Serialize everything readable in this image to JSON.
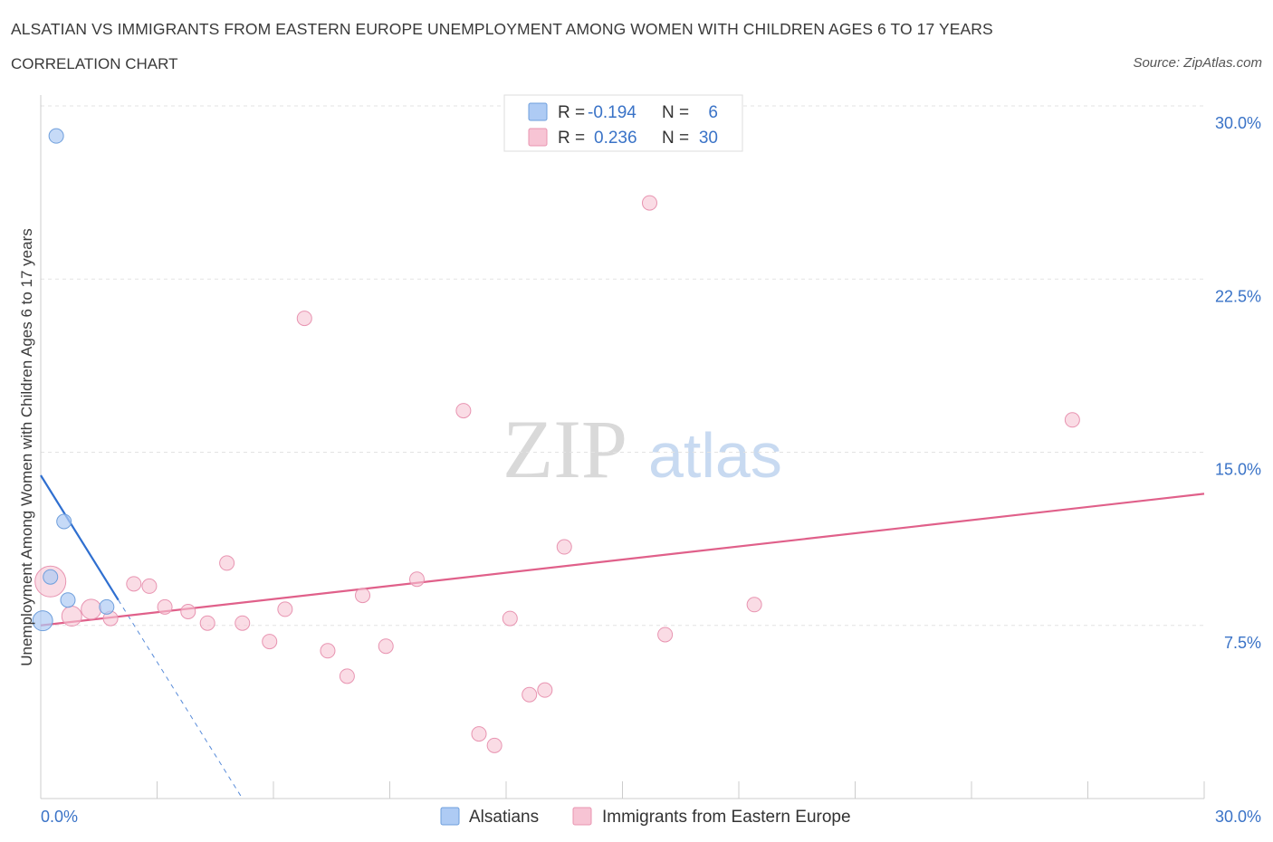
{
  "header": {
    "title": "ALSATIAN VS IMMIGRANTS FROM EASTERN EUROPE UNEMPLOYMENT AMONG WOMEN WITH CHILDREN AGES 6 TO 17 YEARS",
    "subtitle": "CORRELATION CHART",
    "source": "Source: ZipAtlas.com"
  },
  "watermark": {
    "zip": "ZIP",
    "atlas": "atlas"
  },
  "colors": {
    "alsatian_fill": "#aecbf4",
    "alsatian_stroke": "#6f9fdc",
    "alsatian_line": "#2f6fd0",
    "immigrant_fill": "#f7c4d4",
    "immigrant_stroke": "#e894b1",
    "immigrant_line": "#e0608a",
    "accent_text": "#3a73c7"
  },
  "legend_box": {
    "rows": [
      {
        "r_label": "R =",
        "r_value": "-0.194",
        "n_label": "N =",
        "n_value": "6"
      },
      {
        "r_label": "R =",
        "r_value": "0.236",
        "n_label": "N =",
        "n_value": "30"
      }
    ]
  },
  "bottom_legend": {
    "items": [
      "Alsatians",
      "Immigrants from Eastern Europe"
    ]
  },
  "chart_data": {
    "type": "scatter",
    "title": "ALSATIAN VS IMMIGRANTS FROM EASTERN EUROPE UNEMPLOYMENT AMONG WOMEN WITH CHILDREN AGES 6 TO 17 YEARS",
    "subtitle": "CORRELATION CHART",
    "xlabel": "",
    "ylabel": "Unemployment Among Women with Children Ages 6 to 17 years",
    "xlim": [
      0,
      30
    ],
    "ylim": [
      0,
      30
    ],
    "x_tick_labels": [
      "0.0%",
      "30.0%"
    ],
    "y_ticks": [
      7.5,
      15.0,
      22.5,
      30.0
    ],
    "y_tick_labels": [
      "7.5%",
      "15.0%",
      "22.5%",
      "30.0%"
    ],
    "grid": true,
    "series": [
      {
        "name": "Alsatians",
        "R": -0.194,
        "N": 6,
        "points": [
          {
            "x": 0.4,
            "y": 28.7
          },
          {
            "x": 0.6,
            "y": 12.0
          },
          {
            "x": 0.25,
            "y": 9.6
          },
          {
            "x": 0.7,
            "y": 8.6
          },
          {
            "x": 1.7,
            "y": 8.3
          },
          {
            "x": 0.05,
            "y": 7.7
          }
        ],
        "trend": {
          "x0": 0.0,
          "y0": 14.0,
          "x1": 2.0,
          "y1": 8.6,
          "dash_x1": 5.2,
          "dash_y1": 0.0
        }
      },
      {
        "name": "Immigrants from Eastern Europe",
        "R": 0.236,
        "N": 30,
        "points": [
          {
            "x": 0.25,
            "y": 9.4
          },
          {
            "x": 0.8,
            "y": 7.9
          },
          {
            "x": 1.3,
            "y": 8.2
          },
          {
            "x": 1.8,
            "y": 7.8
          },
          {
            "x": 2.4,
            "y": 9.3
          },
          {
            "x": 2.8,
            "y": 9.2
          },
          {
            "x": 3.2,
            "y": 8.3
          },
          {
            "x": 3.8,
            "y": 8.1
          },
          {
            "x": 4.3,
            "y": 7.6
          },
          {
            "x": 4.8,
            "y": 10.2
          },
          {
            "x": 5.2,
            "y": 7.6
          },
          {
            "x": 5.9,
            "y": 6.8
          },
          {
            "x": 6.3,
            "y": 8.2
          },
          {
            "x": 6.8,
            "y": 20.8
          },
          {
            "x": 7.4,
            "y": 6.4
          },
          {
            "x": 7.9,
            "y": 5.3
          },
          {
            "x": 8.3,
            "y": 8.8
          },
          {
            "x": 8.9,
            "y": 6.6
          },
          {
            "x": 9.7,
            "y": 9.5
          },
          {
            "x": 10.9,
            "y": 16.8
          },
          {
            "x": 11.3,
            "y": 2.8
          },
          {
            "x": 11.7,
            "y": 2.3
          },
          {
            "x": 12.1,
            "y": 7.8
          },
          {
            "x": 12.6,
            "y": 4.5
          },
          {
            "x": 13.0,
            "y": 4.7
          },
          {
            "x": 13.5,
            "y": 10.9
          },
          {
            "x": 15.7,
            "y": 25.8
          },
          {
            "x": 16.1,
            "y": 7.1
          },
          {
            "x": 18.4,
            "y": 8.4
          },
          {
            "x": 26.6,
            "y": 16.4
          }
        ],
        "trend": {
          "x0": 0.0,
          "y0": 7.5,
          "x1": 30.0,
          "y1": 13.2
        }
      }
    ]
  }
}
